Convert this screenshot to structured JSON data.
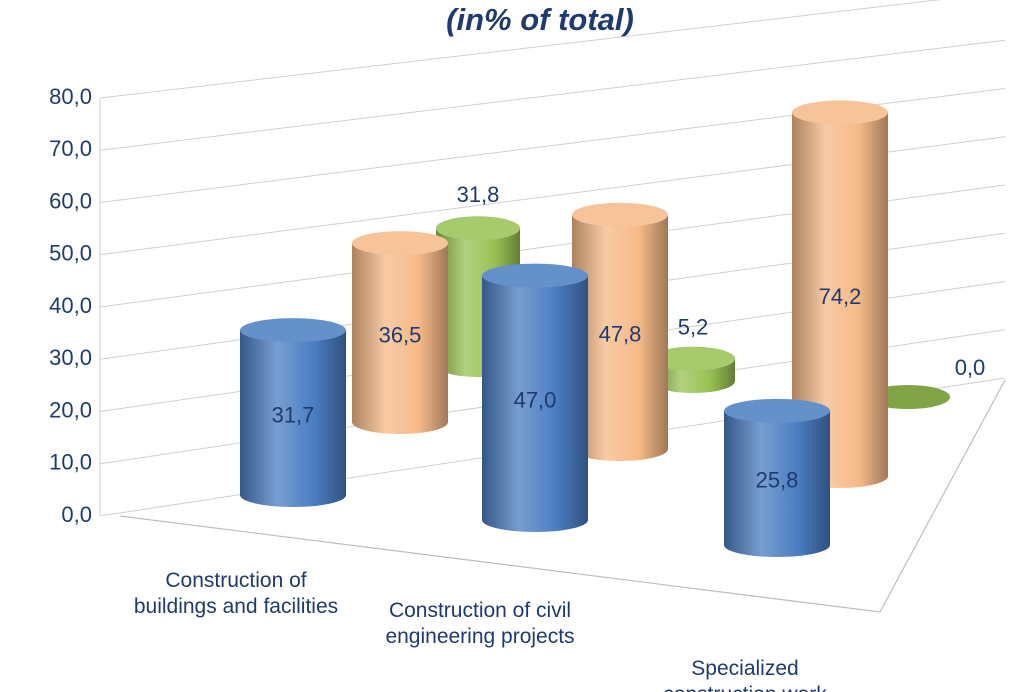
{
  "chart_data": {
    "type": "bar3d",
    "title": "(in% of total)",
    "categories": [
      "Construction of buildings and facilities",
      "Construction of civil engineering projects",
      "Specialized construction work"
    ],
    "series": [
      {
        "color": "#4a7dc2",
        "values": [
          31.7,
          47.0,
          25.8
        ],
        "value_labels": [
          "31,7",
          "47,0",
          "25,8"
        ]
      },
      {
        "color": "#f5b987",
        "values": [
          36.5,
          47.8,
          74.2
        ],
        "value_labels": [
          "36,5",
          "47,8",
          "74,2"
        ]
      },
      {
        "color": "#98c153",
        "values": [
          31.8,
          5.2,
          0.0
        ],
        "value_labels": [
          "31,8",
          "5,2",
          "0,0"
        ]
      }
    ],
    "ylim": [
      0,
      80
    ],
    "yticks": [
      {
        "value": 0,
        "label": "0,0"
      },
      {
        "value": 10,
        "label": "10,0"
      },
      {
        "value": 20,
        "label": "20,0"
      },
      {
        "value": 30,
        "label": "30,0"
      },
      {
        "value": 40,
        "label": "40,0"
      },
      {
        "value": 50,
        "label": "50,0"
      },
      {
        "value": 60,
        "label": "60,0"
      },
      {
        "value": 70,
        "label": "70,0"
      },
      {
        "value": 80,
        "label": "80,0"
      }
    ],
    "grid": true
  }
}
